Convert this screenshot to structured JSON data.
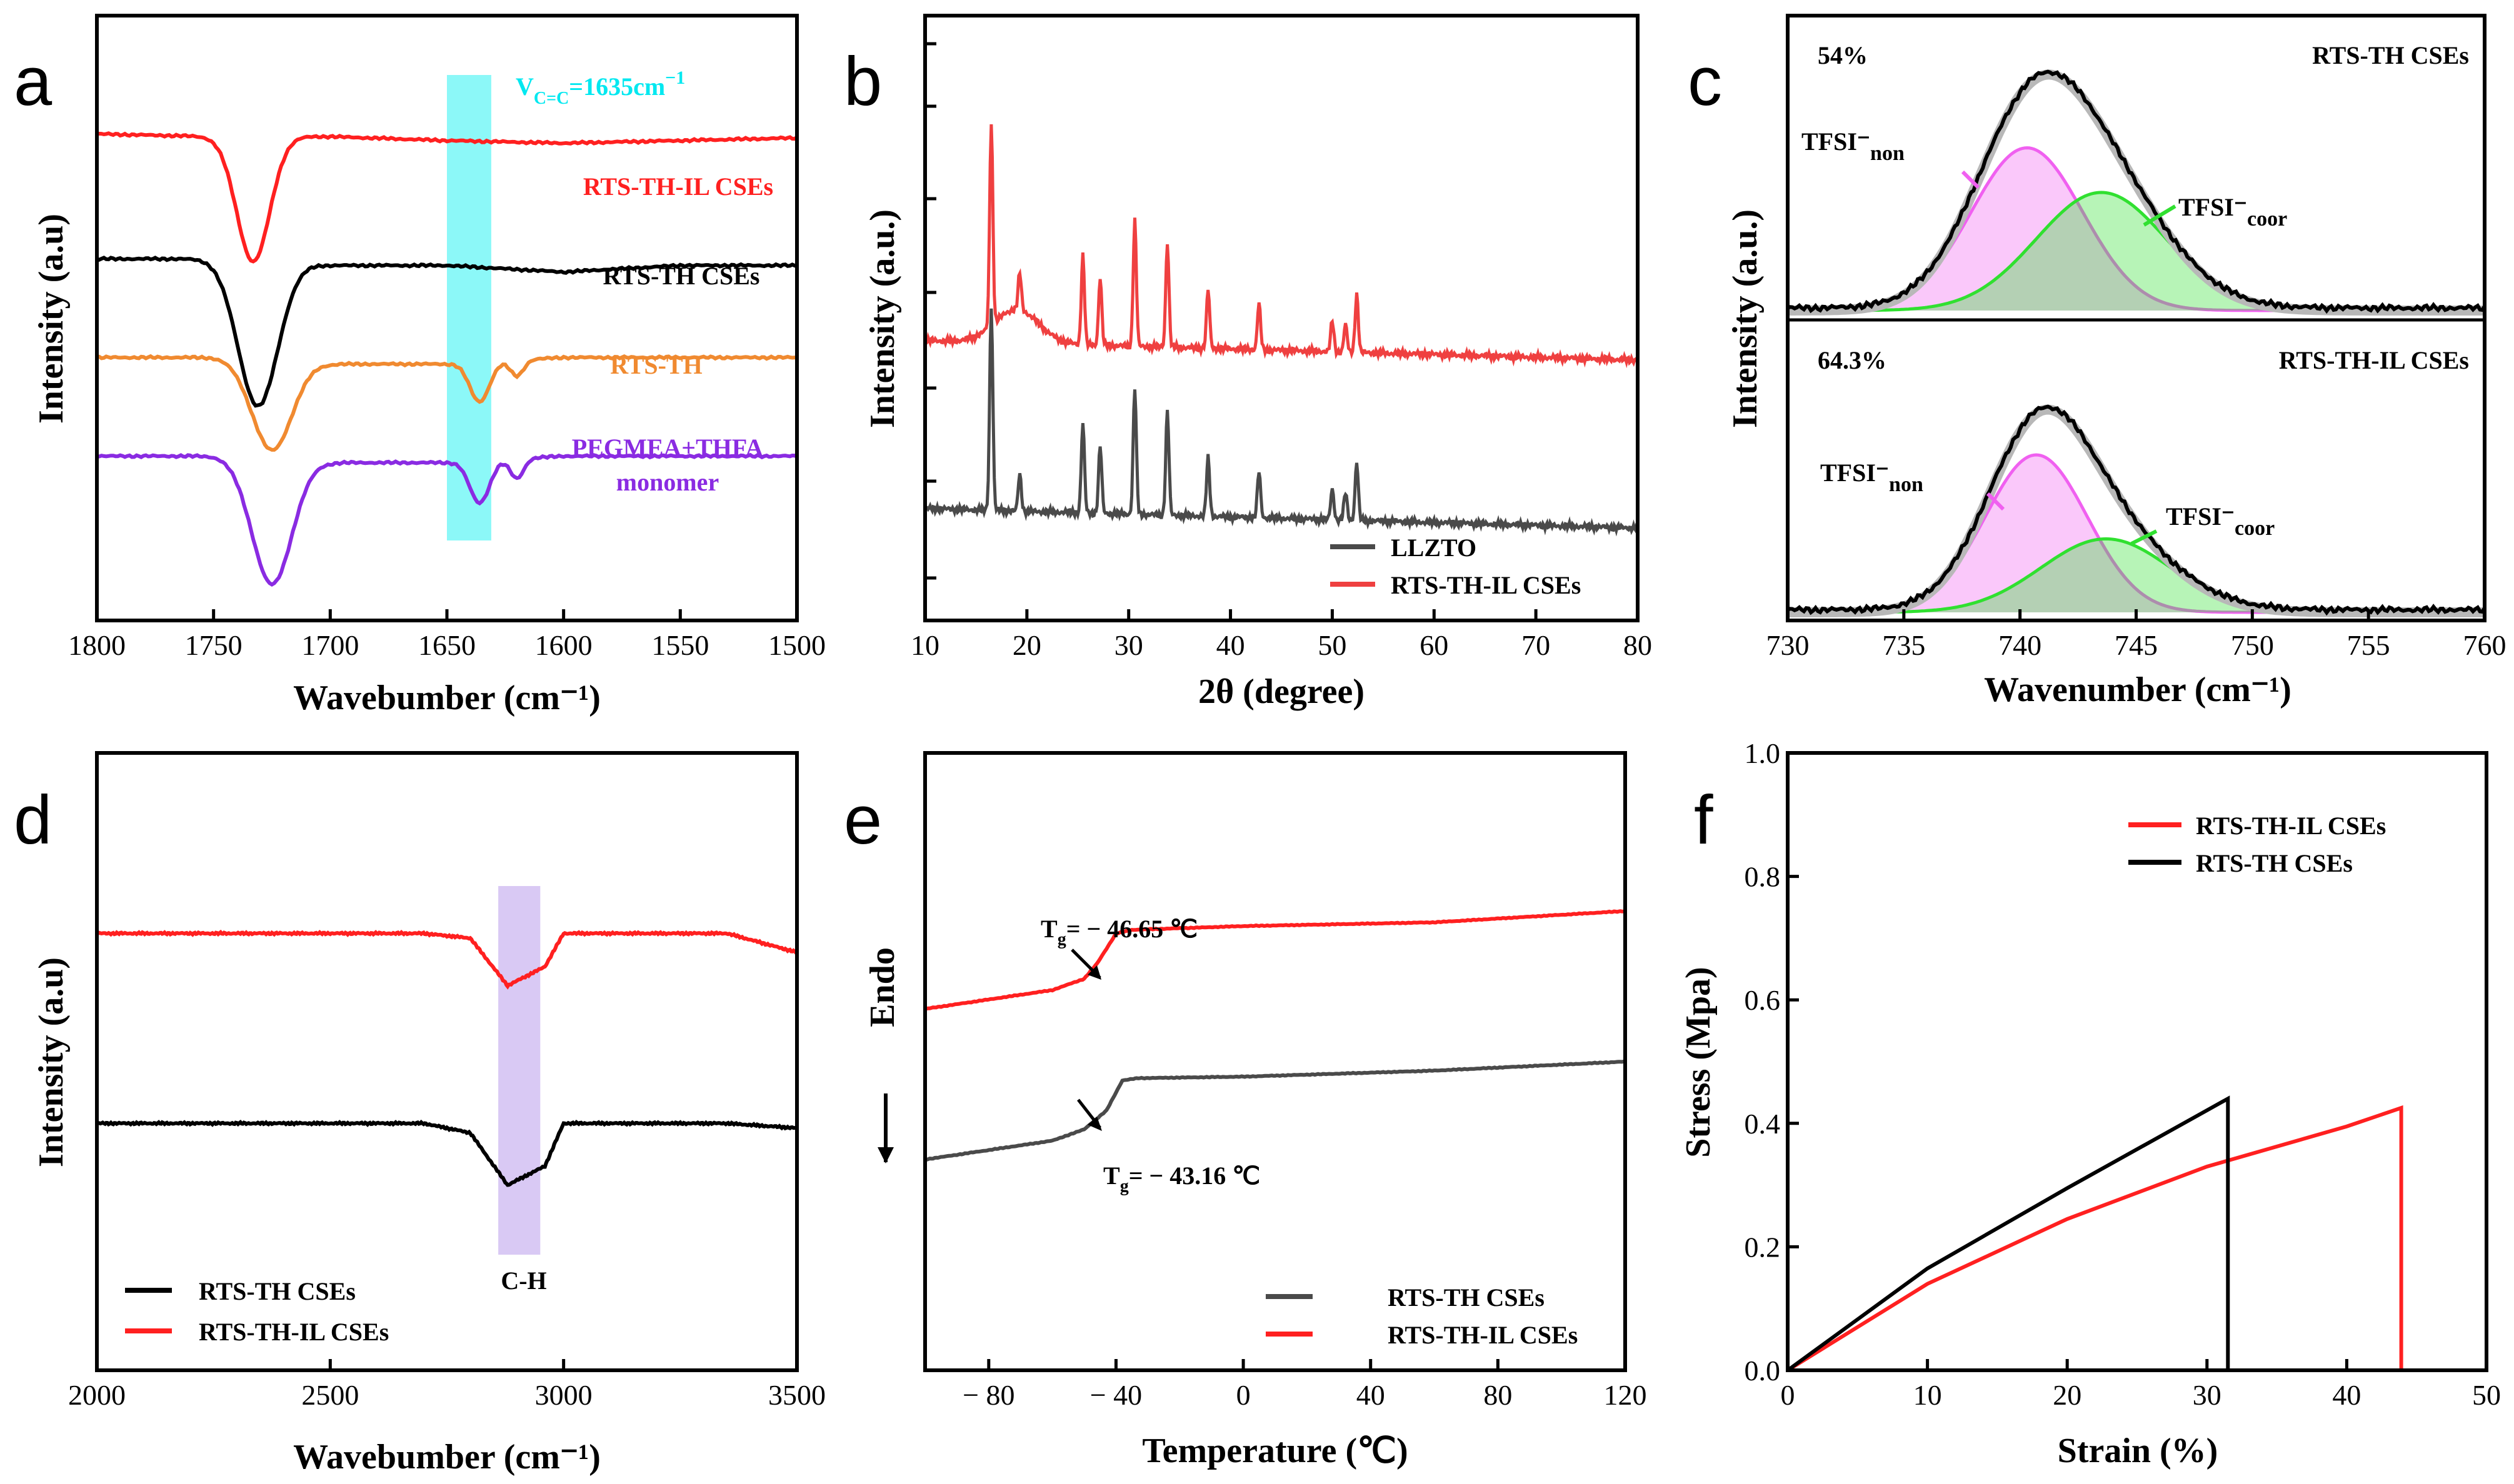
{
  "colors": {
    "black": "#000000",
    "red": "#ff2020",
    "orange": "#f08a30",
    "purple": "#8a2be2",
    "gray": "#4a4a4a",
    "lightred": "#ef4040",
    "cyan": "#00f0f0",
    "lavender": "#c9b2ef",
    "magenta": "#f060f0",
    "green": "#30e030"
  },
  "chart_data": [
    {
      "panel": "a",
      "type": "line",
      "xlabel": "Wavebumber (cm⁻¹)",
      "ylabel": "Intensity (a.u)",
      "xlim": [
        1800,
        1500
      ],
      "xticks": [
        "1800",
        "1750",
        "1700",
        "1650",
        "1600",
        "1550",
        "1500"
      ],
      "highlight": {
        "from": 1650,
        "to": 1631
      },
      "annotation_parts": [
        "V",
        "C=C",
        "=1635cm",
        "−1"
      ],
      "series": [
        {
          "name": "RTS-TH-IL CSEs",
          "color": "red",
          "offset": 3.2,
          "dips": [
            {
              "c": 1733,
              "w": 10,
              "d": 0.95
            }
          ],
          "x": [
            1800,
            1750,
            1700,
            1650,
            1600,
            1550,
            1500
          ],
          "y": [
            3.2,
            3.18,
            3.18,
            3.15,
            3.13,
            3.15,
            3.17
          ]
        },
        {
          "name": "RTS-TH CSEs",
          "color": "black",
          "offset": 2.25,
          "dips": [
            {
              "c": 1731,
              "w": 12,
              "d": 1.1
            }
          ],
          "x": [
            1800,
            1750,
            1700,
            1650,
            1600,
            1550,
            1500
          ],
          "y": [
            2.25,
            2.25,
            2.2,
            2.2,
            2.15,
            2.2,
            2.2
          ]
        },
        {
          "name": "RTS-TH",
          "color": "orange",
          "offset": 1.5,
          "dips": [
            {
              "c": 1725,
              "w": 12,
              "d": 0.68
            },
            {
              "c": 1636,
              "w": 6,
              "d": 0.3
            },
            {
              "c": 1620,
              "w": 4,
              "d": 0.12
            }
          ],
          "x": [
            1800,
            1750,
            1700,
            1650,
            1600,
            1550,
            1500
          ],
          "y": [
            1.5,
            1.5,
            1.45,
            1.45,
            1.5,
            1.5,
            1.5
          ]
        },
        {
          "name": "PEGMEA+THFA",
          "name2": "monomer",
          "color": "purple",
          "offset": 0.75,
          "dips": [
            {
              "c": 1725,
              "w": 12,
              "d": 0.95
            },
            {
              "c": 1636,
              "w": 6,
              "d": 0.32
            },
            {
              "c": 1620,
              "w": 4,
              "d": 0.15
            }
          ],
          "x": [
            1800,
            1750,
            1700,
            1650,
            1600,
            1550,
            1500
          ],
          "y": [
            0.75,
            0.75,
            0.7,
            0.7,
            0.75,
            0.75,
            0.75
          ]
        }
      ]
    },
    {
      "panel": "b",
      "type": "line",
      "xlabel": "2θ (degree)",
      "ylabel": "Intensity (a.u.)",
      "xlim": [
        10,
        80
      ],
      "xticks": [
        "10",
        "20",
        "30",
        "40",
        "50",
        "60",
        "70",
        "80"
      ],
      "legend": [
        "LLZTO",
        "RTS-TH-IL CSEs"
      ],
      "peaks": [
        16.5,
        19.3,
        25.5,
        27.2,
        30.6,
        33.8,
        37.8,
        42.8,
        50.0,
        51.3,
        52.4
      ],
      "heights": [
        6.6,
        1.2,
        2.9,
        2.2,
        4.1,
        3.4,
        1.9,
        1.5,
        1.0,
        0.9,
        1.9
      ],
      "series": [
        {
          "name": "LLZTO",
          "color": "gray",
          "baseline": 1.7
        },
        {
          "name": "RTS-TH-IL CSEs",
          "color": "lightred",
          "baseline": 4.7,
          "hump": {
            "c": 19,
            "w": 3,
            "h": 0.6
          }
        }
      ]
    },
    {
      "panel": "c",
      "type": "area",
      "xlabel": "Wavenumber (cm⁻¹)",
      "ylabel": "Intensity (a.u.)",
      "xlim": [
        730,
        760
      ],
      "xticks": [
        "730",
        "735",
        "740",
        "745",
        "750",
        "755",
        "760"
      ],
      "subplots": [
        {
          "title": "RTS-TH CSEs",
          "percent": "54%",
          "non": {
            "center": 740.3,
            "sigma": 2.4,
            "height": 0.62
          },
          "coor": {
            "center": 743.5,
            "sigma": 2.8,
            "height": 0.45
          }
        },
        {
          "title": "RTS-TH-IL CSEs",
          "percent": "64.3%",
          "non": {
            "center": 740.7,
            "sigma": 2.2,
            "height": 0.6
          },
          "coor": {
            "center": 743.7,
            "sigma": 2.8,
            "height": 0.28
          }
        }
      ],
      "label_non_base": "TFSI⁻",
      "label_non_sub": "non",
      "label_coor_base": "TFSI⁻",
      "label_coor_sub": "coor"
    },
    {
      "panel": "d",
      "type": "line",
      "xlabel": "Wavebumber (cm⁻¹)",
      "ylabel": "Intensity (a.u)",
      "xlim": [
        2000,
        3500
      ],
      "xticks": [
        "2000",
        "2500",
        "3000",
        "3500"
      ],
      "highlight": {
        "from": 2860,
        "to": 2950,
        "label": "C-H"
      },
      "legend": [
        "RTS-TH CSEs",
        "RTS-TH-IL CSEs"
      ],
      "series": [
        {
          "name": "RTS-TH CSEs",
          "color": "black",
          "x": [
            2000,
            2700,
            2800,
            2880,
            2920,
            2960,
            3000,
            3350,
            3500
          ],
          "y": [
            1.0,
            1.0,
            0.9,
            0.35,
            0.45,
            0.55,
            1.0,
            1.0,
            0.95
          ]
        },
        {
          "name": "RTS-TH-IL CSEs",
          "color": "red",
          "x": [
            2000,
            2700,
            2800,
            2880,
            2920,
            2960,
            3000,
            3350,
            3500
          ],
          "y": [
            3.0,
            3.0,
            2.95,
            2.45,
            2.55,
            2.65,
            3.0,
            3.0,
            2.8
          ]
        }
      ]
    },
    {
      "panel": "e",
      "type": "line",
      "xlabel": "Temperature (℃)",
      "ylabel": "Endo",
      "xlim": [
        -100,
        120
      ],
      "xticks": [
        "− 80",
        "− 40",
        "0",
        "40",
        "80",
        "120"
      ],
      "legend": [
        "RTS-TH CSEs",
        "RTS-TH-IL CSEs"
      ],
      "tg_labels": [
        {
          "text": "= − 46.65 ℃",
          "value": -46.65
        },
        {
          "text": "= − 43.16 ℃",
          "value": -43.16
        }
      ],
      "series": [
        {
          "name": "RTS-TH-IL CSEs",
          "color": "red",
          "x": [
            -100,
            -60,
            -50,
            -46,
            -40,
            -35,
            0,
            60,
            120
          ],
          "y": [
            3.2,
            3.45,
            3.6,
            3.8,
            4.2,
            4.25,
            4.3,
            4.35,
            4.5
          ]
        },
        {
          "name": "RTS-TH CSEs",
          "color": "gray",
          "x": [
            -100,
            -60,
            -50,
            -43,
            -38,
            -33,
            0,
            60,
            120
          ],
          "y": [
            1.2,
            1.45,
            1.6,
            1.85,
            2.25,
            2.28,
            2.3,
            2.38,
            2.5
          ]
        }
      ]
    },
    {
      "panel": "f",
      "type": "line",
      "xlabel": "Strain (%)",
      "ylabel": "Stress (Mpa)",
      "xlim": [
        0,
        50
      ],
      "ylim": [
        0,
        1.0
      ],
      "xticks": [
        "0",
        "10",
        "20",
        "30",
        "40",
        "50"
      ],
      "yticks": [
        "0.0",
        "0.2",
        "0.4",
        "0.6",
        "0.8",
        "1.0"
      ],
      "legend": [
        "RTS-TH-IL CSEs",
        "RTS-TH CSEs"
      ],
      "series": [
        {
          "name": "RTS-TH-IL CSEs",
          "color": "red",
          "x": [
            0,
            10,
            20,
            30,
            40,
            43.9,
            43.9
          ],
          "y": [
            0,
            0.14,
            0.245,
            0.33,
            0.395,
            0.425,
            0
          ]
        },
        {
          "name": "RTS-TH CSEs",
          "color": "black",
          "x": [
            0,
            10,
            20,
            31.5,
            31.5
          ],
          "y": [
            0,
            0.165,
            0.295,
            0.44,
            0
          ]
        }
      ]
    }
  ]
}
